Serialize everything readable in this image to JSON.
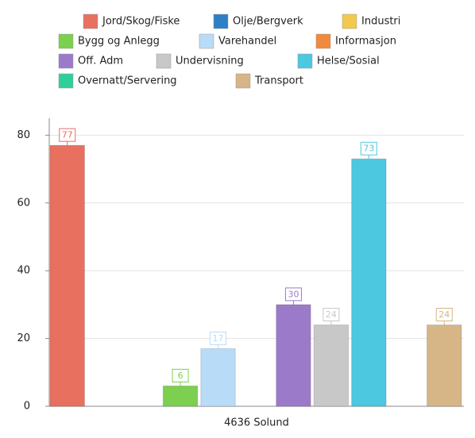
{
  "chart_data": {
    "type": "bar",
    "categories": [
      "4636 Solund"
    ],
    "series": [
      {
        "name": "Jord/Skog/Fiske",
        "color": "#e8705f",
        "values": [
          77
        ]
      },
      {
        "name": "Olje/Bergverk",
        "color": "#2f7fc6",
        "values": [
          null
        ]
      },
      {
        "name": "Industri",
        "color": "#f2c94c",
        "values": [
          null
        ]
      },
      {
        "name": "Bygg og Anlegg",
        "color": "#7ccf4f",
        "values": [
          6
        ]
      },
      {
        "name": "Varehandel",
        "color": "#b8dcf8",
        "values": [
          17
        ]
      },
      {
        "name": "Informasjon",
        "color": "#f08a3c",
        "values": [
          null
        ]
      },
      {
        "name": "Off. Adm",
        "color": "#9b7bc9",
        "values": [
          30
        ]
      },
      {
        "name": "Undervisning",
        "color": "#c8c8c8",
        "values": [
          24
        ]
      },
      {
        "name": "Helse/Sosial",
        "color": "#4cc8e0",
        "values": [
          73
        ]
      },
      {
        "name": "Overnatt/Servering",
        "color": "#2ecf9a",
        "values": [
          null
        ]
      },
      {
        "name": "Transport",
        "color": "#d6b587",
        "values": [
          24
        ]
      }
    ],
    "ylim": [
      0,
      85
    ],
    "yticks": [
      0,
      20,
      40,
      60,
      80
    ],
    "grid": true
  }
}
